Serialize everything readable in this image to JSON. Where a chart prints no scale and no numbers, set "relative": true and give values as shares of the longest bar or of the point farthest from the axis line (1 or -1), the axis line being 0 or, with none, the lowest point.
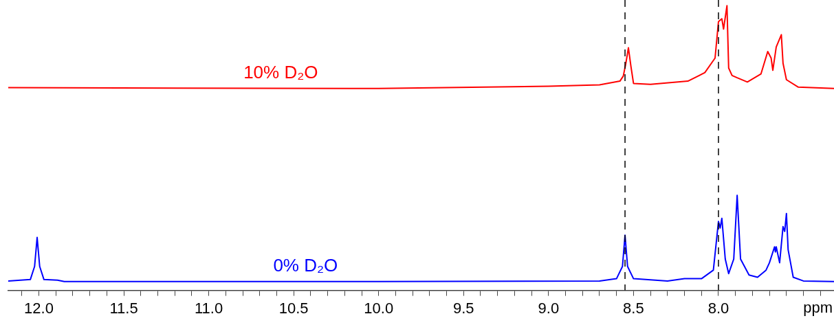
{
  "chart_data": {
    "type": "line",
    "relative": true,
    "xlabel": "ppm",
    "legend": false,
    "grid": false,
    "marker": "none",
    "line_style": "solid",
    "xlim": [
      12.18,
      7.32
    ],
    "xticks": [
      {
        "value": 12.1,
        "label": null
      },
      {
        "value": 12.0,
        "label": "12.0"
      },
      {
        "value": 11.9,
        "label": null
      },
      {
        "value": 11.8,
        "label": null
      },
      {
        "value": 11.7,
        "label": null
      },
      {
        "value": 11.6,
        "label": null
      },
      11.5,
      {
        "value": 11.4,
        "label": null
      },
      {
        "value": 11.3,
        "label": null
      },
      {
        "value": 11.2,
        "label": null
      },
      {
        "value": 11.1,
        "label": null
      },
      {
        "value": 11.0,
        "label": "11.0"
      },
      {
        "value": 10.9,
        "label": null
      },
      {
        "value": 10.8,
        "label": null
      },
      {
        "value": 10.7,
        "label": null
      },
      {
        "value": 10.6,
        "label": null
      },
      10.5,
      {
        "value": 10.4,
        "label": null
      },
      {
        "value": 10.3,
        "label": null
      },
      {
        "value": 10.2,
        "label": null
      },
      {
        "value": 10.1,
        "label": null
      },
      {
        "value": 10.0,
        "label": "10.0"
      },
      {
        "value": 9.9,
        "label": null
      },
      {
        "value": 9.8,
        "label": null
      },
      {
        "value": 9.7,
        "label": null
      },
      {
        "value": 9.6,
        "label": null
      },
      9.5,
      {
        "value": 9.4,
        "label": null
      },
      {
        "value": 9.3,
        "label": null
      },
      {
        "value": 9.2,
        "label": null
      },
      {
        "value": 9.1,
        "label": null
      },
      {
        "value": 9.0,
        "label": "9.0"
      },
      {
        "value": 8.9,
        "label": null
      },
      {
        "value": 8.8,
        "label": null
      },
      {
        "value": 8.7,
        "label": null
      },
      {
        "value": 8.6,
        "label": null
      },
      8.5,
      {
        "value": 8.4,
        "label": null
      },
      {
        "value": 8.3,
        "label": null
      },
      {
        "value": 8.2,
        "label": null
      },
      {
        "value": 8.1,
        "label": null
      },
      {
        "value": 8.0,
        "label": "8.0"
      },
      {
        "value": 7.9,
        "label": null
      },
      {
        "value": 7.8,
        "label": null
      },
      {
        "value": 7.7,
        "label": null
      },
      {
        "value": 7.6,
        "label": null
      },
      {
        "value": 7.5,
        "label": null
      },
      {
        "value": 7.4,
        "label": null
      }
    ],
    "ref_lines": [
      {
        "axis": "x",
        "value": 8.55,
        "color": "#000000",
        "line_style": "dashed"
      },
      {
        "axis": "x",
        "value": 8.0,
        "color": "#000000",
        "line_style": "dashed"
      }
    ],
    "series": [
      {
        "name": "10% D₂O",
        "color": "#ff0000",
        "x": [
          12.18,
          10.0,
          9.0,
          8.7,
          8.58,
          8.56,
          8.545,
          8.53,
          8.515,
          8.5,
          8.4,
          8.18,
          8.08,
          8.02,
          8.0,
          7.98,
          7.97,
          7.95,
          7.94,
          7.92,
          7.89,
          7.83,
          7.75,
          7.71,
          7.69,
          7.68,
          7.66,
          7.63,
          7.62,
          7.6,
          7.53,
          7.32
        ],
        "values": [
          0.712,
          0.709,
          0.717,
          0.722,
          0.735,
          0.753,
          0.798,
          0.852,
          0.786,
          0.727,
          0.724,
          0.735,
          0.765,
          0.816,
          0.944,
          0.954,
          0.918,
          1.0,
          0.781,
          0.755,
          0.747,
          0.732,
          0.76,
          0.839,
          0.816,
          0.773,
          0.855,
          0.898,
          0.798,
          0.74,
          0.714,
          0.709
        ]
      },
      {
        "name": "0% D₂O",
        "color": "#0000ff",
        "x": [
          12.18,
          12.05,
          12.025,
          12.01,
          11.995,
          11.97,
          11.89,
          11.85,
          10.0,
          8.7,
          8.6,
          8.565,
          8.55,
          8.535,
          8.5,
          8.3,
          8.2,
          8.1,
          8.03,
          8.0,
          7.99,
          7.98,
          7.96,
          7.94,
          7.91,
          7.89,
          7.87,
          7.82,
          7.77,
          7.72,
          7.7,
          7.67,
          7.665,
          7.66,
          7.64,
          7.62,
          7.61,
          7.6,
          7.59,
          7.56,
          7.5,
          7.32
        ],
        "values": [
          0.033,
          0.038,
          0.084,
          0.186,
          0.084,
          0.038,
          0.036,
          0.031,
          0.031,
          0.033,
          0.041,
          0.084,
          0.194,
          0.084,
          0.041,
          0.033,
          0.041,
          0.041,
          0.071,
          0.242,
          0.219,
          0.253,
          0.11,
          0.059,
          0.11,
          0.334,
          0.11,
          0.054,
          0.046,
          0.071,
          0.097,
          0.153,
          0.135,
          0.153,
          0.097,
          0.224,
          0.207,
          0.27,
          0.143,
          0.046,
          0.033,
          0.031
        ]
      }
    ]
  }
}
